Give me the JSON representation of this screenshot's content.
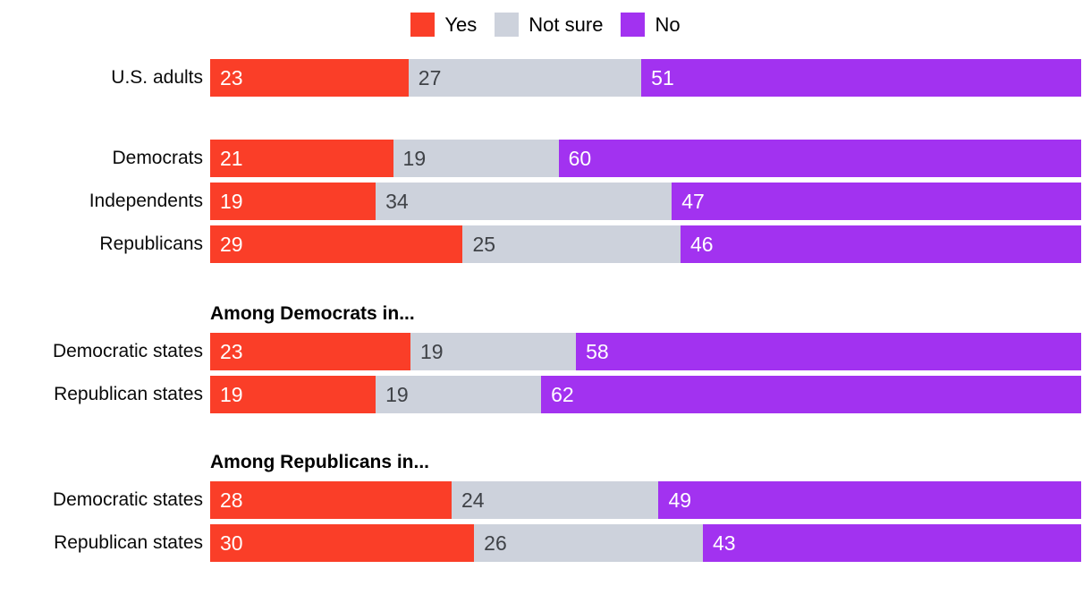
{
  "chart_data": {
    "type": "bar",
    "variant": "horizontal-stacked-percent",
    "title": "",
    "legend_position": "top-center",
    "grid": false,
    "axis_labels_visible": false,
    "series": [
      {
        "name": "Yes",
        "color": "#FA3E28",
        "value_color": "#FFFFFF"
      },
      {
        "name": "Not sure",
        "color": "#CDD2DC",
        "value_color": "#3F4247"
      },
      {
        "name": "No",
        "color": "#A232F0",
        "value_color": "#FFFFFF"
      }
    ],
    "groups": [
      {
        "header": "",
        "rows": [
          {
            "label": "U.S. adults",
            "values": [
              23,
              27,
              51
            ]
          }
        ]
      },
      {
        "header": "",
        "rows": [
          {
            "label": "Democrats",
            "values": [
              21,
              19,
              60
            ]
          },
          {
            "label": "Independents",
            "values": [
              19,
              34,
              47
            ]
          },
          {
            "label": "Republicans",
            "values": [
              29,
              25,
              46
            ]
          }
        ]
      },
      {
        "header": "Among Democrats in...",
        "rows": [
          {
            "label": "Democratic states",
            "values": [
              23,
              19,
              58
            ]
          },
          {
            "label": "Republican states",
            "values": [
              19,
              19,
              62
            ]
          }
        ]
      },
      {
        "header": "Among Republicans in...",
        "rows": [
          {
            "label": "Democratic states",
            "values": [
              28,
              24,
              49
            ]
          },
          {
            "label": "Republican states",
            "values": [
              30,
              26,
              43
            ]
          }
        ]
      }
    ]
  }
}
